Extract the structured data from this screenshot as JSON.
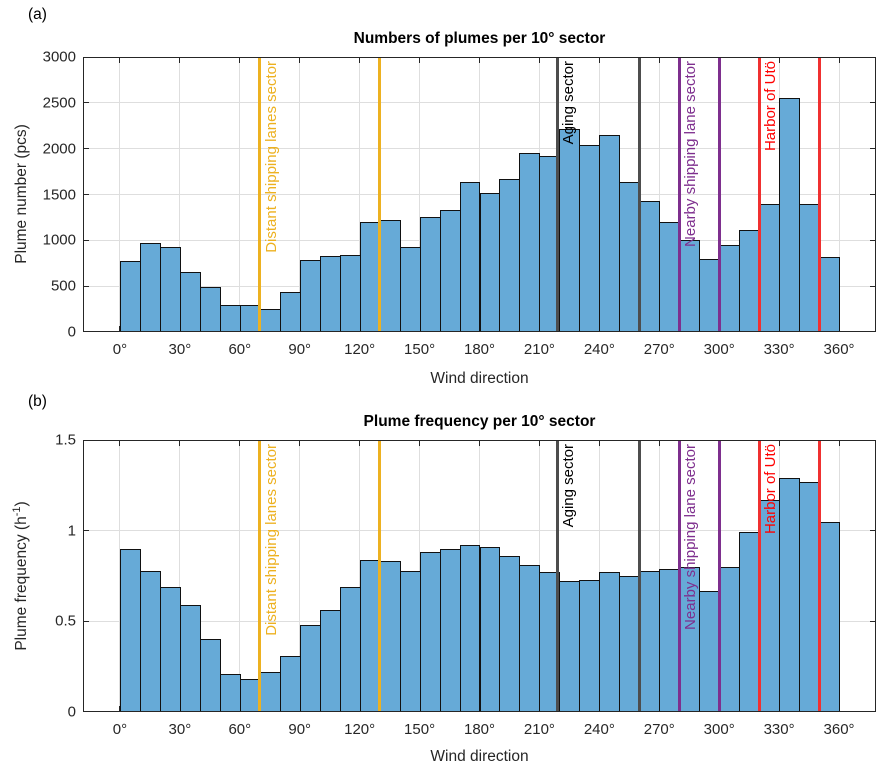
{
  "figure_description": "Two stacked histograms of pollution plume statistics by wind direction with colored sector boundary lines",
  "colors": {
    "bar_fill": "#66AAD7",
    "bar_edge": "#111111",
    "grid": "#DEDEDE",
    "axis": "#262626",
    "background": "#ffffff"
  },
  "sectors": [
    {
      "id": "distant-shipping-lanes-sector",
      "label": "Distant shipping lanes sector",
      "start_deg": 70,
      "end_deg": 130,
      "line_color": "#EDB120",
      "text_color": "#EDB120"
    },
    {
      "id": "aging-sector",
      "label": "Aging sector",
      "start_deg": 219,
      "end_deg": 260,
      "line_color": "#4D4D4D",
      "text_color": "#000000"
    },
    {
      "id": "nearby-shipping-lane-sector",
      "label": "Nearby shipping lane sector",
      "start_deg": 280,
      "end_deg": 300,
      "line_color": "#7E2F8E",
      "text_color": "#7E2F8E"
    },
    {
      "id": "harbor-of-uto-sector",
      "label": "Harbor of Utö",
      "start_deg": 320,
      "end_deg": 350,
      "line_color": "#F03030",
      "text_color": "#FF0000"
    }
  ],
  "chart_data": [
    {
      "type": "bar",
      "panel_label": "(a)",
      "title": "Numbers of plumes per 10° sector",
      "xlabel": "Wind direction",
      "ylabel": "Plume number (pcs)",
      "ylabel_pre": "Plume number (pcs)",
      "ylabel_sup": "",
      "ylabel_post": "",
      "xlim": [
        -18.5,
        378.5
      ],
      "ylim": [
        0,
        3000
      ],
      "xticks": [
        0,
        30,
        60,
        90,
        120,
        150,
        180,
        210,
        240,
        270,
        300,
        330,
        360
      ],
      "xtick_labels": [
        "0°",
        "30°",
        "60°",
        "90°",
        "120°",
        "150°",
        "180°",
        "210°",
        "240°",
        "270°",
        "300°",
        "330°",
        "360°"
      ],
      "yticks": [
        0,
        500,
        1000,
        1500,
        2000,
        2500,
        3000
      ],
      "ytick_labels": [
        "0",
        "500",
        "1000",
        "1500",
        "2000",
        "2500",
        "3000"
      ],
      "bin_width_deg": 10,
      "bin_start_deg": [
        0,
        10,
        20,
        30,
        40,
        50,
        60,
        70,
        80,
        90,
        100,
        110,
        120,
        130,
        140,
        150,
        160,
        170,
        180,
        190,
        200,
        210,
        220,
        230,
        240,
        250,
        260,
        270,
        280,
        290,
        300,
        310,
        320,
        330,
        340,
        350
      ],
      "values": [
        770,
        970,
        930,
        650,
        490,
        290,
        290,
        250,
        440,
        790,
        830,
        840,
        1200,
        1220,
        930,
        1260,
        1330,
        1640,
        1520,
        1670,
        1950,
        1920,
        2210,
        2040,
        2150,
        1640,
        1430,
        1200,
        1000,
        800,
        950,
        1110,
        1400,
        2550,
        1400,
        820
      ],
      "grid": true,
      "legend": "none"
    },
    {
      "type": "bar",
      "panel_label": "(b)",
      "title": "Plume frequency per 10° sector",
      "xlabel": "Wind direction",
      "ylabel": "Plume frequency (h⁻¹)",
      "ylabel_pre": "Plume frequency (h",
      "ylabel_sup": "-1",
      "ylabel_post": ")",
      "xlim": [
        -18.5,
        378.5
      ],
      "ylim": [
        0,
        1.5
      ],
      "xticks": [
        0,
        30,
        60,
        90,
        120,
        150,
        180,
        210,
        240,
        270,
        300,
        330,
        360
      ],
      "xtick_labels": [
        "0°",
        "30°",
        "60°",
        "90°",
        "120°",
        "150°",
        "180°",
        "210°",
        "240°",
        "270°",
        "300°",
        "330°",
        "360°"
      ],
      "yticks": [
        0,
        0.5,
        1,
        1.5
      ],
      "ytick_labels": [
        "0",
        "0.5",
        "1",
        "1.5"
      ],
      "bin_width_deg": 10,
      "bin_start_deg": [
        0,
        10,
        20,
        30,
        40,
        50,
        60,
        70,
        80,
        90,
        100,
        110,
        120,
        130,
        140,
        150,
        160,
        170,
        180,
        190,
        200,
        210,
        220,
        230,
        240,
        250,
        260,
        270,
        280,
        290,
        300,
        310,
        320,
        330,
        340,
        350
      ],
      "values": [
        0.9,
        0.78,
        0.69,
        0.59,
        0.4,
        0.21,
        0.18,
        0.22,
        0.31,
        0.48,
        0.56,
        0.69,
        0.84,
        0.83,
        0.78,
        0.88,
        0.9,
        0.92,
        0.91,
        0.86,
        0.81,
        0.77,
        0.72,
        0.73,
        0.77,
        0.75,
        0.78,
        0.79,
        0.8,
        0.67,
        0.8,
        0.99,
        1.17,
        1.29,
        1.27,
        1.05
      ],
      "grid": true,
      "legend": "none"
    }
  ]
}
